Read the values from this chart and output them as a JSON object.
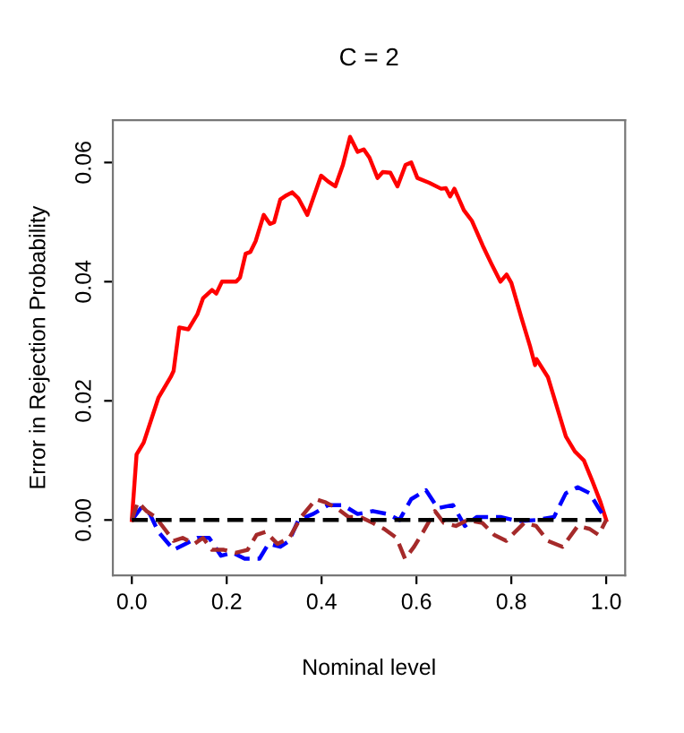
{
  "chart_data": {
    "type": "line",
    "title": "C = 2",
    "xlabel": "Nominal level",
    "ylabel": "Error in Rejection Probability",
    "xlim": [
      -0.04,
      1.04
    ],
    "ylim": [
      -0.0093,
      0.0671
    ],
    "xticks": [
      {
        "value": 0,
        "label": "0.0"
      },
      {
        "value": 0.2,
        "label": "0.2"
      },
      {
        "value": 0.4,
        "label": "0.4"
      },
      {
        "value": 0.6,
        "label": "0.6"
      },
      {
        "value": 0.8,
        "label": "0.8"
      },
      {
        "value": 1,
        "label": "1.0"
      }
    ],
    "yticks": [
      {
        "value": 0,
        "label": "0.00"
      },
      {
        "value": 0.02,
        "label": "0.02"
      },
      {
        "value": 0.04,
        "label": "0.04"
      },
      {
        "value": 0.06,
        "label": "0.06"
      }
    ],
    "grid": false,
    "legend": false,
    "marker": "none",
    "series": [
      {
        "color": "#ff0000",
        "line_style": "solid",
        "x": [
          0,
          0.01,
          0.025,
          0.056,
          0.082,
          0.088,
          0.1,
          0.119,
          0.138,
          0.15,
          0.169,
          0.178,
          0.19,
          0.22,
          0.228,
          0.24,
          0.25,
          0.261,
          0.278,
          0.291,
          0.3,
          0.313,
          0.326,
          0.338,
          0.351,
          0.37,
          0.399,
          0.414,
          0.429,
          0.445,
          0.46,
          0.476,
          0.489,
          0.501,
          0.518,
          0.529,
          0.545,
          0.56,
          0.577,
          0.589,
          0.602,
          0.627,
          0.652,
          0.662,
          0.671,
          0.68,
          0.7,
          0.717,
          0.74,
          0.758,
          0.777,
          0.79,
          0.8,
          0.821,
          0.84,
          0.85,
          0.853,
          0.877,
          0.896,
          0.915,
          0.934,
          0.953,
          0.971,
          0.988,
          1
        ],
        "values": [
          0,
          0.011,
          0.013,
          0.0205,
          0.024,
          0.025,
          0.0323,
          0.032,
          0.0345,
          0.0372,
          0.0386,
          0.038,
          0.04,
          0.04,
          0.0407,
          0.0447,
          0.045,
          0.0468,
          0.0512,
          0.0497,
          0.05,
          0.0538,
          0.0545,
          0.055,
          0.054,
          0.0512,
          0.0578,
          0.0568,
          0.056,
          0.0596,
          0.0643,
          0.0618,
          0.0622,
          0.0608,
          0.0574,
          0.0584,
          0.0583,
          0.056,
          0.0596,
          0.06,
          0.0574,
          0.0566,
          0.0556,
          0.0557,
          0.0543,
          0.0556,
          0.052,
          0.0502,
          0.046,
          0.043,
          0.04,
          0.0412,
          0.0398,
          0.034,
          0.029,
          0.026,
          0.027,
          0.024,
          0.019,
          0.014,
          0.0115,
          0.01,
          0.0065,
          0.003,
          0
        ]
      },
      {
        "color": "#0000ff",
        "line_style": "dashed",
        "x": [
          0,
          0.019,
          0.038,
          0.056,
          0.088,
          0.113,
          0.138,
          0.163,
          0.188,
          0.213,
          0.238,
          0.269,
          0.288,
          0.313,
          0.332,
          0.351,
          0.382,
          0.414,
          0.445,
          0.476,
          0.508,
          0.539,
          0.564,
          0.589,
          0.62,
          0.645,
          0.677,
          0.702,
          0.727,
          0.777,
          0.815,
          0.852,
          0.89,
          0.915,
          0.94,
          0.965,
          0.984,
          1
        ],
        "values": [
          0,
          0.002,
          0.001,
          -0.002,
          -0.005,
          -0.004,
          -0.003,
          -0.003,
          -0.006,
          -0.0055,
          -0.0065,
          -0.0065,
          -0.004,
          -0.0045,
          -0.0035,
          0,
          0.001,
          0.0025,
          0.0025,
          0.001,
          0.0015,
          0.001,
          0,
          0.0035,
          0.005,
          0.002,
          0.0025,
          -0.001,
          0.0005,
          0.0005,
          -0.0002,
          0,
          0.0005,
          0.0045,
          0.0055,
          0.0045,
          0.002,
          0
        ]
      },
      {
        "color": "#a52a2a",
        "line_style": "dashed",
        "x": [
          0,
          0.0125,
          0.031,
          0.05,
          0.069,
          0.088,
          0.107,
          0.132,
          0.15,
          0.169,
          0.194,
          0.219,
          0.244,
          0.263,
          0.282,
          0.307,
          0.332,
          0.357,
          0.388,
          0.407,
          0.432,
          0.457,
          0.482,
          0.508,
          0.532,
          0.558,
          0.576,
          0.595,
          0.614,
          0.639,
          0.658,
          0.683,
          0.708,
          0.739,
          0.764,
          0.789,
          0.808,
          0.827,
          0.852,
          0.877,
          0.908,
          0.94,
          0.965,
          0.984,
          1
        ],
        "values": [
          0,
          0.003,
          0.0015,
          0.0005,
          -0.0015,
          -0.0035,
          -0.003,
          -0.004,
          -0.003,
          -0.005,
          -0.005,
          -0.0055,
          -0.005,
          -0.0025,
          -0.002,
          -0.004,
          -0.003,
          0.0005,
          0.0035,
          0.003,
          0.002,
          0.0005,
          0.0005,
          -0.0005,
          -0.0015,
          -0.003,
          -0.0065,
          -0.0045,
          -0.002,
          0.0015,
          -0.0005,
          -0.001,
          0,
          -0.0005,
          -0.0025,
          -0.0035,
          -0.002,
          -0.0005,
          -0.001,
          -0.0035,
          -0.0045,
          -0.001,
          -0.0015,
          -0.0025,
          0
        ]
      },
      {
        "color": "#000000",
        "line_style": "dashed",
        "x": [
          0,
          1
        ],
        "values": [
          0,
          0
        ]
      }
    ]
  }
}
